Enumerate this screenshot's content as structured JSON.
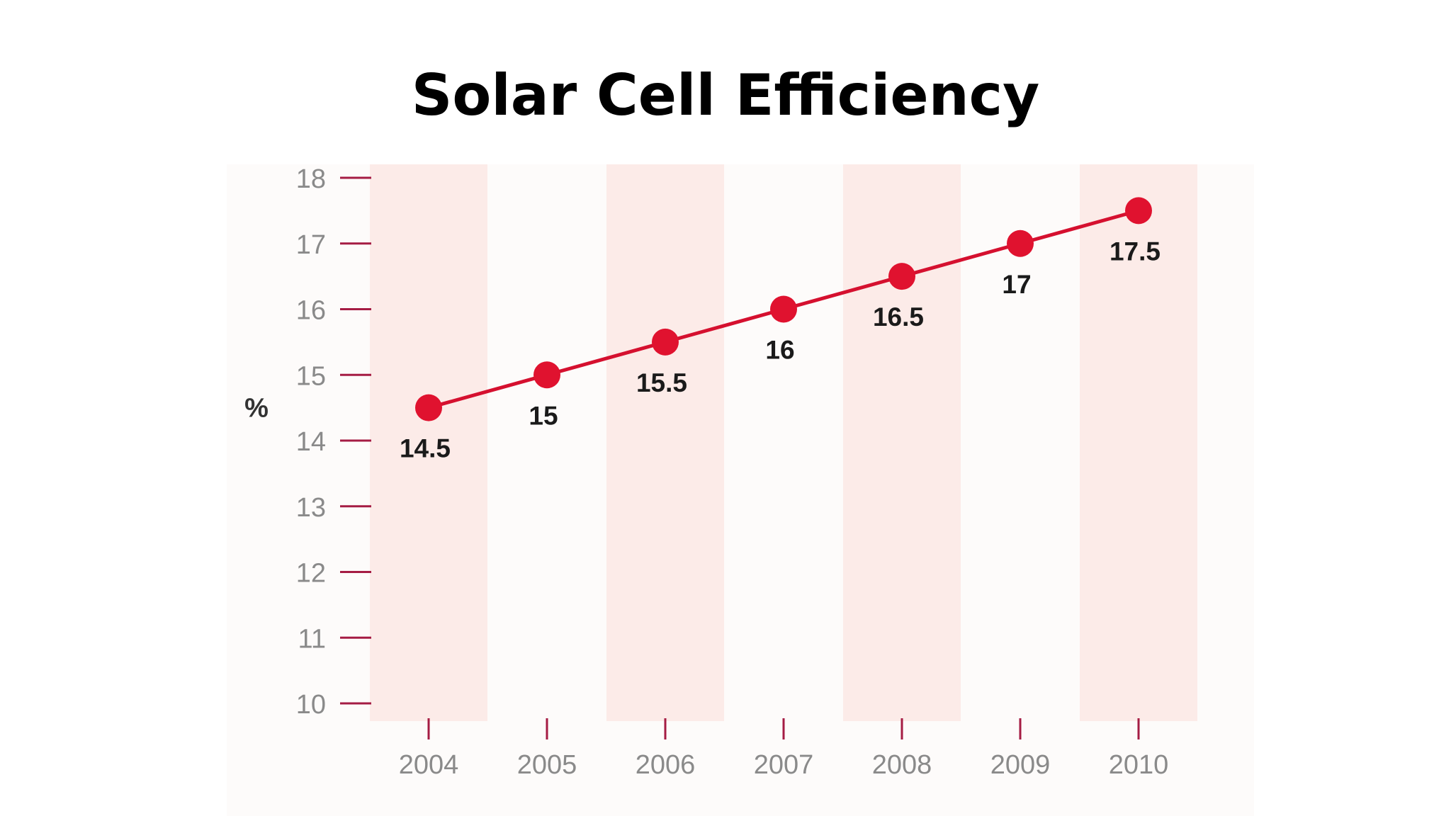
{
  "slide": {
    "title": "Solar Cell Efficiency"
  },
  "chart_data": {
    "type": "line",
    "title": "Solar Cell Efficiency",
    "xlabel": "",
    "ylabel": "%",
    "categories": [
      "2004",
      "2005",
      "2006",
      "2007",
      "2008",
      "2009",
      "2010"
    ],
    "series": [
      {
        "values": [
          14.5,
          15,
          15.5,
          16,
          16.5,
          17,
          17.5
        ],
        "labels": [
          "14.5",
          "15",
          "15.5",
          "16",
          "16.5",
          "17",
          "17.5"
        ]
      }
    ],
    "yticks": [
      "18",
      "17",
      "16",
      "15",
      "14",
      "13",
      "12",
      "11",
      "10"
    ],
    "ylim": [
      10,
      18
    ],
    "grid": false,
    "legend": "none",
    "colors": {
      "line": "#d5102f",
      "marker": "#e0122f",
      "band": "#fcebe8",
      "plot_background": "#fdfbfa",
      "axis_tick": "#a51c44"
    }
  }
}
